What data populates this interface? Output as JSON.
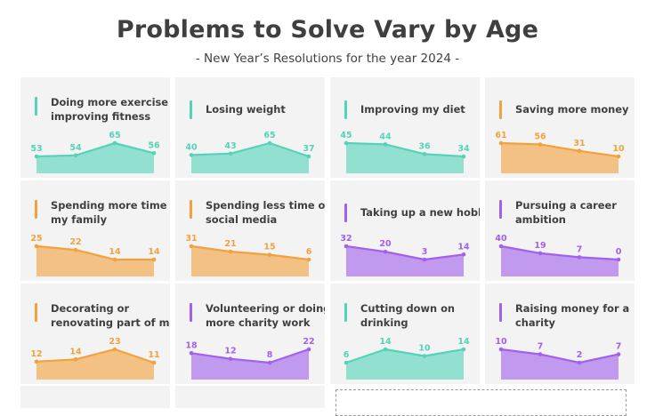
{
  "title": "Problems to Solve Vary by Age",
  "subtitle": "- New Year’s Resolutions for the year 2024 -",
  "colors": {
    "teal": "#55d3b8",
    "orange": "#f1a23d",
    "purple": "#a261ec"
  },
  "chart_data": [
    {
      "type": "area",
      "title": "Doing more exercise or improving fitness",
      "color": "teal",
      "values": [
        53,
        54,
        65,
        56
      ]
    },
    {
      "type": "area",
      "title": "Losing weight",
      "color": "teal",
      "values": [
        40,
        43,
        65,
        37
      ]
    },
    {
      "type": "area",
      "title": "Improving my diet",
      "color": "teal",
      "values": [
        45,
        44,
        36,
        34
      ]
    },
    {
      "type": "area",
      "title": "Saving more money",
      "color": "orange",
      "values": [
        61,
        56,
        31,
        10
      ]
    },
    {
      "type": "area",
      "title": "Spending more time with my family",
      "color": "orange",
      "values": [
        25,
        22,
        14,
        14
      ]
    },
    {
      "type": "area",
      "title": "Spending less time on social media",
      "color": "orange",
      "values": [
        31,
        21,
        15,
        6
      ]
    },
    {
      "type": "area",
      "title": "Taking up a new hobby",
      "color": "purple",
      "values": [
        32,
        20,
        3,
        14
      ]
    },
    {
      "type": "area",
      "title": "Pursuing a career ambition",
      "color": "purple",
      "values": [
        40,
        19,
        7,
        0
      ]
    },
    {
      "type": "area",
      "title": "Decorating or renovating part of my home",
      "color": "orange",
      "values": [
        12,
        14,
        23,
        11
      ]
    },
    {
      "type": "area",
      "title": "Volunteering or doing more charity work",
      "color": "purple",
      "values": [
        18,
        12,
        8,
        22
      ]
    },
    {
      "type": "area",
      "title": "Cutting down on drinking",
      "color": "teal",
      "values": [
        6,
        14,
        10,
        14
      ]
    },
    {
      "type": "area",
      "title": "Raising money for a charity",
      "color": "purple",
      "values": [
        10,
        7,
        2,
        7
      ]
    }
  ]
}
